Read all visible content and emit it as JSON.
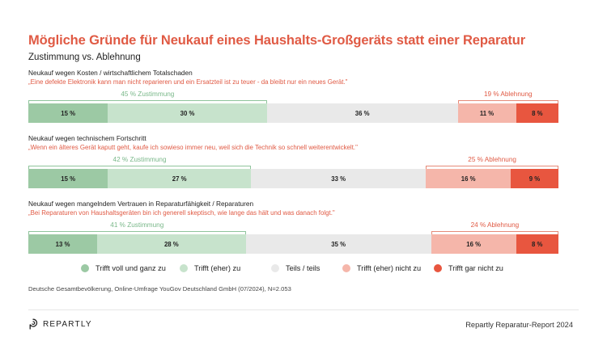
{
  "title": "Mögliche Gründe für Neukauf eines Haushalts-Großgeräts statt einer Reparatur",
  "subtitle": "Zustimmung vs. Ablehnung",
  "colors": {
    "accent": "#e05a44",
    "s1": "#9cc9a4",
    "s2": "#c7e3cc",
    "s3": "#e9e9e9",
    "s4": "#f5b6aa",
    "s5": "#e8563f"
  },
  "legend": [
    {
      "label": "Trifft voll und ganz zu",
      "color": "#9cc9a4"
    },
    {
      "label": "Trifft (eher) zu",
      "color": "#c7e3cc"
    },
    {
      "label": "Teils / teils",
      "color": "#e9e9e9"
    },
    {
      "label": "Trifft (eher) nicht zu",
      "color": "#f5b6aa"
    },
    {
      "label": "Trifft gar nicht zu",
      "color": "#e8563f"
    }
  ],
  "chart_data": {
    "type": "bar",
    "orientation": "horizontal-stacked",
    "series_names": [
      "Trifft voll und ganz zu",
      "Trifft (eher) zu",
      "Teils / teils",
      "Trifft (eher) nicht zu",
      "Trifft gar nicht zu"
    ],
    "groups": [
      {
        "label": "Neukauf wegen Kosten / wirtschaftlichem Totalschaden",
        "quote": "„Eine defekte Elektronik kann man nicht reparieren und ein Ersatzteil ist zu teuer - da bleibt nur ein neues Gerät.\"",
        "values": [
          15,
          30,
          36,
          11,
          8
        ],
        "value_labels": [
          "15 %",
          "30 %",
          "36 %",
          "11 %",
          "8 %"
        ],
        "agree_label": "45 % Zustimmung",
        "disagree_label": "19 % Ablehnung"
      },
      {
        "label": "Neukauf wegen technischem Fortschritt",
        "quote": "„Wenn ein älteres Gerät kaputt geht, kaufe ich sowieso immer neu, weil sich die Technik so schnell weiterentwickelt.\"",
        "values": [
          15,
          27,
          33,
          16,
          9
        ],
        "value_labels": [
          "15 %",
          "27 %",
          "33 %",
          "16 %",
          "9 %"
        ],
        "agree_label": "42 % Zustimmung",
        "disagree_label": "25 % Ablehnung"
      },
      {
        "label": "Neukauf wegen mangelndem Vertrauen in Reparaturfähigkeit / Reparaturen",
        "quote": "„Bei Reparaturen von Haushaltsgeräten bin ich generell skeptisch, wie lange das hält und was danach folgt.\"",
        "values": [
          13,
          28,
          35,
          16,
          8
        ],
        "value_labels": [
          "13 %",
          "28 %",
          "35 %",
          "16 %",
          "8 %"
        ],
        "agree_label": "41 % Zustimmung",
        "disagree_label": "24 % Ablehnung"
      }
    ]
  },
  "source": "Deutsche Gesamtbevölkerung, Online-Umfrage YouGov Deutschland GmbH (07/2024), N=2.053",
  "brand": "REPARTLY",
  "report": "Repartly Reparatur-Report 2024"
}
